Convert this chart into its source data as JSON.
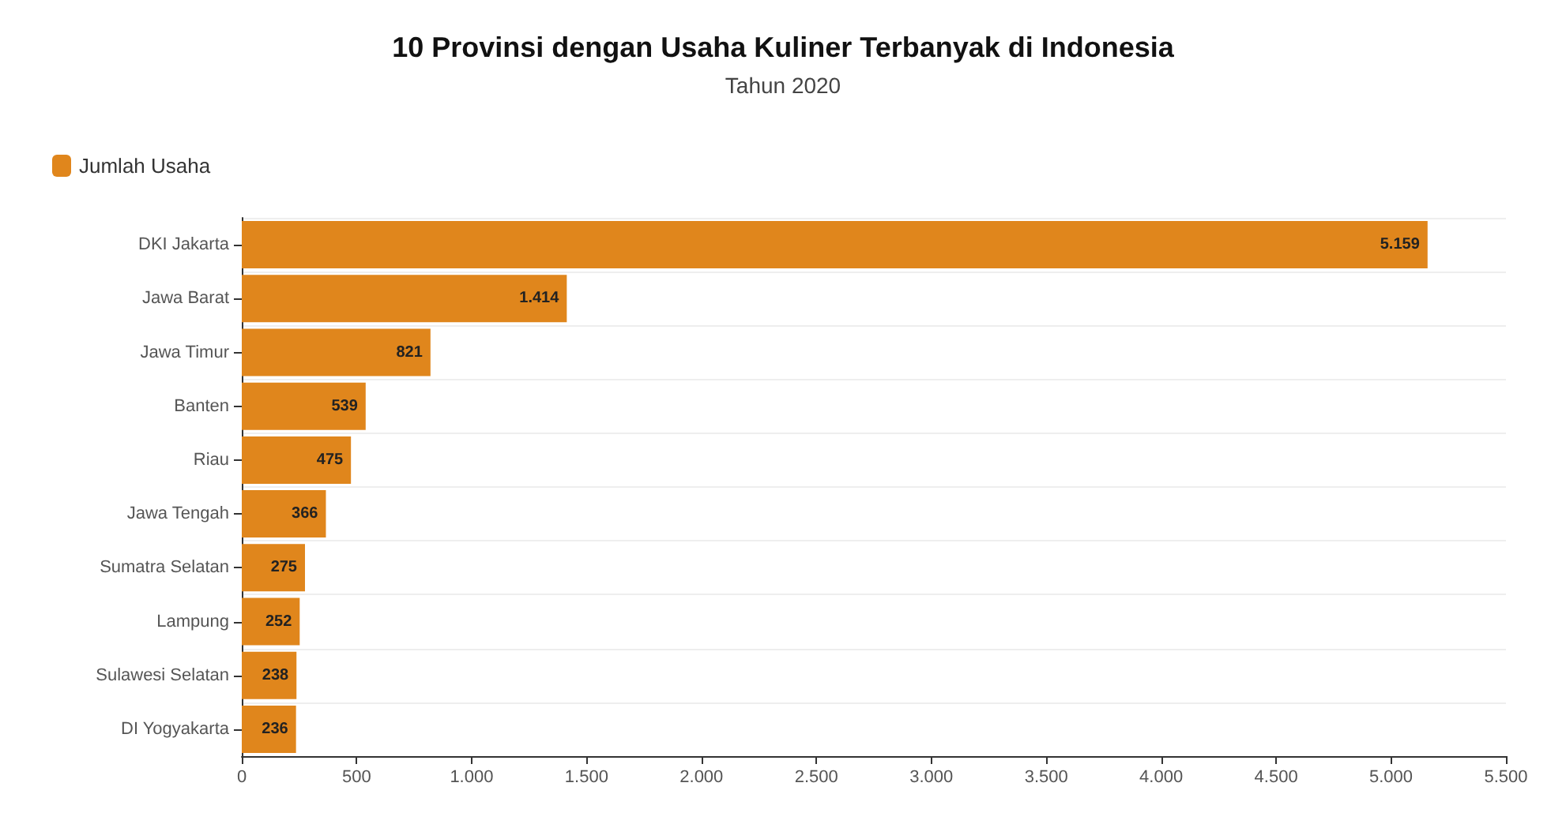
{
  "chart_data": {
    "type": "bar",
    "orientation": "horizontal",
    "title": "10 Provinsi dengan Usaha Kuliner Terbanyak di Indonesia",
    "subtitle": "Tahun 2020",
    "categories": [
      "DKI Jakarta",
      "Jawa Barat",
      "Jawa Timur",
      "Banten",
      "Riau",
      "Jawa Tengah",
      "Sumatra Selatan",
      "Lampung",
      "Sulawesi Selatan",
      "DI Yogyakarta"
    ],
    "series": [
      {
        "name": "Jumlah Usaha",
        "color": "#e0861c",
        "values": [
          5159,
          1414,
          821,
          539,
          475,
          366,
          275,
          252,
          238,
          236
        ],
        "value_labels": [
          "5.159",
          "1.414",
          "821",
          "539",
          "475",
          "366",
          "275",
          "252",
          "238",
          "236"
        ]
      }
    ],
    "xlim": [
      0,
      5500
    ],
    "xticks": [
      0,
      500,
      {
        "value": 1000,
        "label": "1.000"
      },
      {
        "value": 1500,
        "label": "1.500"
      },
      {
        "value": 2000,
        "label": "2.000"
      },
      {
        "value": 2500,
        "label": "2.500"
      },
      {
        "value": 3000,
        "label": "3.000"
      },
      {
        "value": 3500,
        "label": "3.500"
      },
      {
        "value": 4000,
        "label": "4.000"
      },
      {
        "value": 4500,
        "label": "4.500"
      },
      {
        "value": 5000,
        "label": "5.000"
      },
      {
        "value": 5500,
        "label": "5.500"
      }
    ],
    "grid": "y",
    "legend": "top left"
  }
}
